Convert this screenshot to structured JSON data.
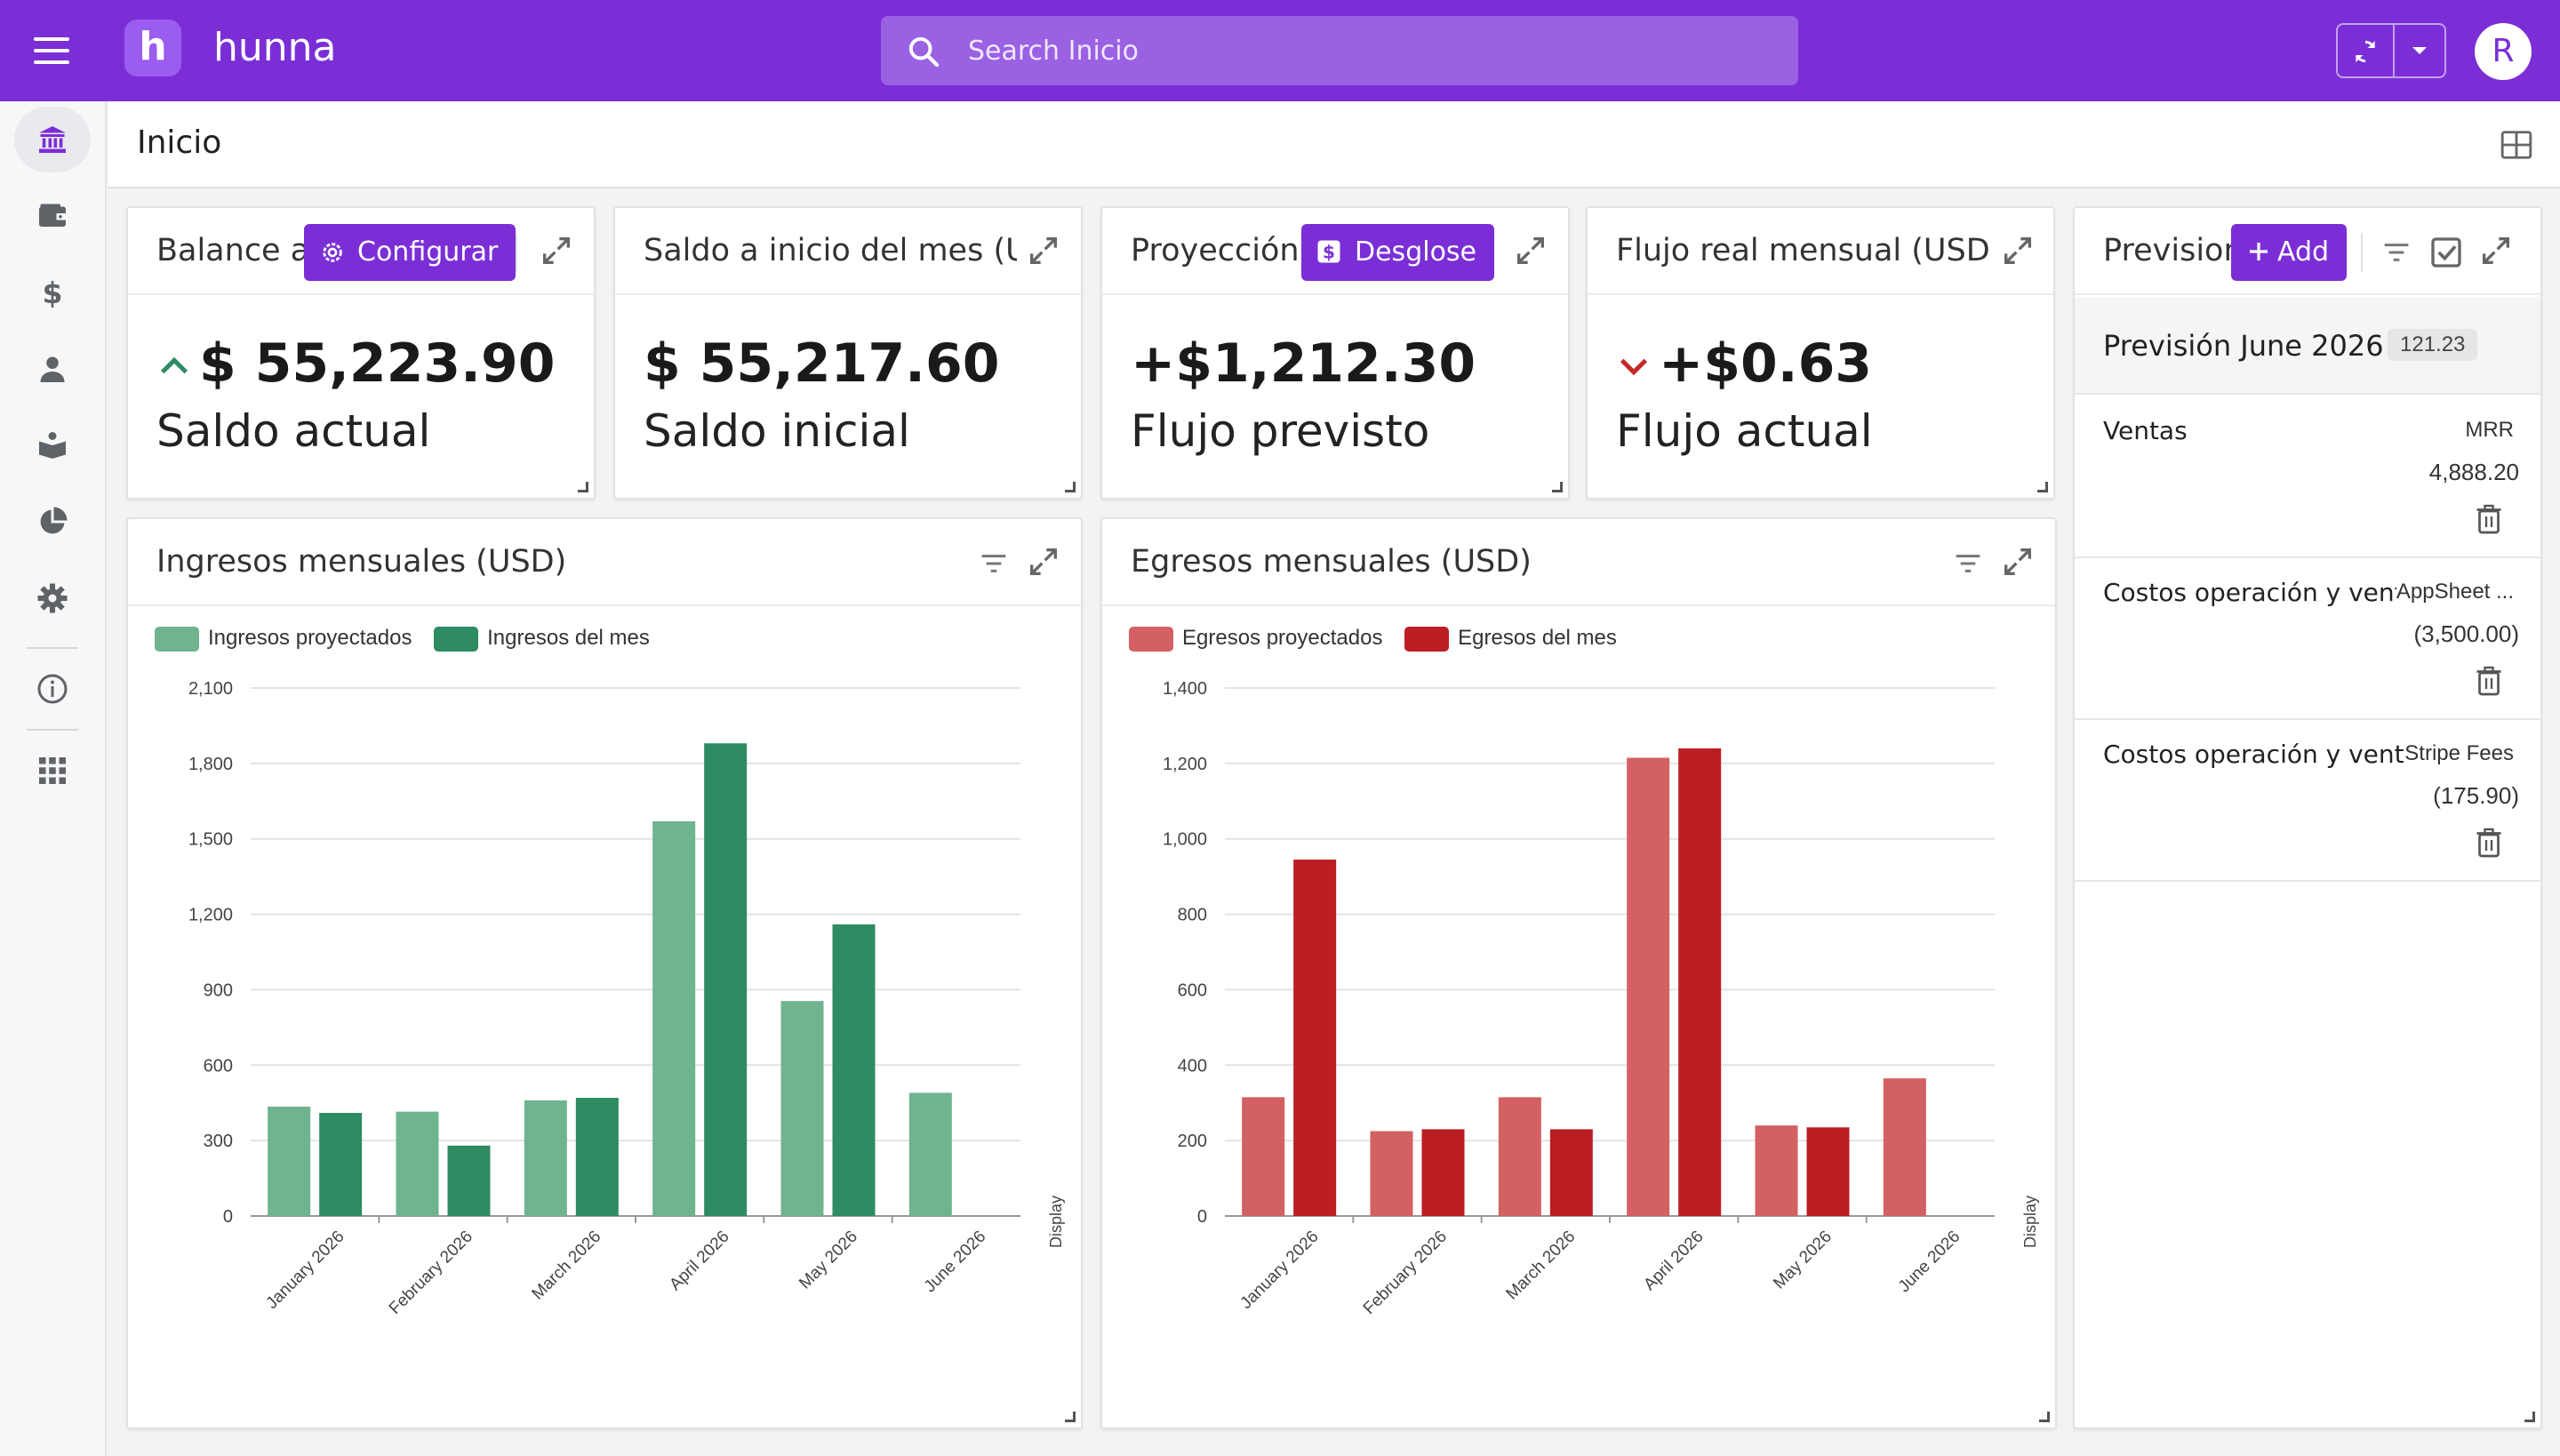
{
  "app": {
    "brand": "hunna",
    "logo_letter": "h",
    "avatar_initial": "R"
  },
  "search": {
    "placeholder": "Search Inicio"
  },
  "page": {
    "title": "Inicio"
  },
  "sidebar": {
    "items": [
      {
        "icon": "bank-icon",
        "active": true
      },
      {
        "icon": "wallet-icon"
      },
      {
        "icon": "dollar-icon"
      },
      {
        "icon": "person-icon"
      },
      {
        "icon": "open-book-icon"
      },
      {
        "icon": "pie-chart-icon"
      },
      {
        "icon": "gear-icon"
      },
      {
        "icon": "info-icon"
      },
      {
        "icon": "apps-grid-icon"
      }
    ]
  },
  "kpis": {
    "balance": {
      "title": "Balance actual (USD)",
      "button": "Configurar",
      "value": "$ 55,223.90",
      "label": "Saldo actual",
      "trend": "up"
    },
    "saldo_inicio": {
      "title": "Saldo a inicio del mes (USD)",
      "value": "$ 55,217.60",
      "label": "Saldo inicial"
    },
    "proyeccion": {
      "title": "Proyección mensual (USD)",
      "button": "Desglose",
      "value": "+$1,212.30",
      "label": "Flujo previsto"
    },
    "flujo_real": {
      "title": "Flujo real mensual (USD)",
      "value": "+$0.63",
      "label": "Flujo actual",
      "trend": "down"
    }
  },
  "previsiones": {
    "title": "Previsiones",
    "add_button": "Add",
    "group_title": "Previsión June 2026",
    "group_badge": "121.23",
    "items": [
      {
        "name": "Ventas",
        "source": "MRR",
        "amount": "4,888.20"
      },
      {
        "name": "Costos operación y ventas",
        "source": "AppSheet ...",
        "amount": "(3,500.00)"
      },
      {
        "name": "Costos operación y ventas",
        "source": "Stripe Fees",
        "amount": "(175.90)"
      }
    ]
  },
  "colors": {
    "brand": "#7b2ed6",
    "ingresos_proyectados": "#6fb38f",
    "ingresos_mes": "#2e8b62",
    "egresos_proyectados": "#d36062",
    "egresos_mes": "#bb1e23"
  },
  "chart_data": [
    {
      "type": "bar",
      "title": "Ingresos mensuales (USD)",
      "categories": [
        "January 2026",
        "February 2026",
        "March 2026",
        "April 2026",
        "May 2026",
        "June 2026"
      ],
      "series": [
        {
          "name": "Ingresos proyectados",
          "values": [
            435,
            415,
            460,
            1570,
            855,
            490
          ]
        },
        {
          "name": "Ingresos del mes",
          "values": [
            410,
            280,
            470,
            1880,
            1160,
            null
          ]
        }
      ],
      "yticks": [
        "0",
        "300",
        "600",
        "900",
        "1,200",
        "1,500",
        "1,800",
        "2,100"
      ],
      "ylim": [
        0,
        2100
      ],
      "side_label": "Display",
      "grid": true,
      "legend": "top-left"
    },
    {
      "type": "bar",
      "title": "Egresos mensuales (USD)",
      "categories": [
        "January 2026",
        "February 2026",
        "March 2026",
        "April 2026",
        "May 2026",
        "June 2026"
      ],
      "series": [
        {
          "name": "Egresos proyectados",
          "values": [
            315,
            225,
            315,
            1215,
            240,
            365
          ]
        },
        {
          "name": "Egresos del mes",
          "values": [
            945,
            230,
            230,
            1240,
            235,
            null
          ]
        }
      ],
      "yticks": [
        "0",
        "200",
        "400",
        "600",
        "800",
        "1,000",
        "1,200",
        "1,400"
      ],
      "ylim": [
        0,
        1400
      ],
      "side_label": "Display",
      "grid": true,
      "legend": "top-left"
    }
  ]
}
